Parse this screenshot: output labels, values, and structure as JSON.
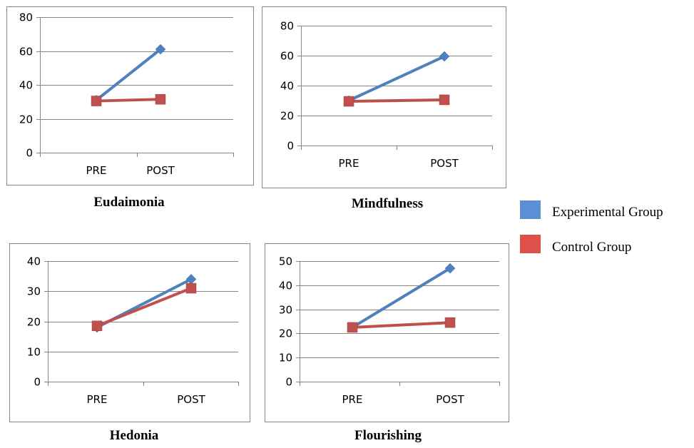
{
  "colors": {
    "experimental": "#4f81bd",
    "control": "#c0504d",
    "grid": "#868686",
    "frame": "#868686"
  },
  "legend": [
    {
      "label": "Experimental Group",
      "color": "#5b8fd6"
    },
    {
      "label": "Control Group",
      "color": "#e0504a"
    }
  ],
  "chart_data": [
    {
      "type": "line",
      "title": "Eudaimonia",
      "categories": [
        "PRE",
        "POST"
      ],
      "ylim": [
        0,
        80
      ],
      "yticks": [
        0,
        20,
        40,
        60,
        80
      ],
      "series": [
        {
          "name": "Experimental Group",
          "marker": "diamond",
          "values": [
            31,
            61
          ]
        },
        {
          "name": "Control Group",
          "marker": "square",
          "values": [
            30.5,
            31.5
          ]
        }
      ]
    },
    {
      "type": "line",
      "title": "Mindfulness",
      "categories": [
        "PRE",
        "POST"
      ],
      "ylim": [
        0,
        80
      ],
      "yticks": [
        0,
        20,
        40,
        60,
        80
      ],
      "series": [
        {
          "name": "Experimental Group",
          "marker": "diamond",
          "values": [
            30,
            59.5
          ]
        },
        {
          "name": "Control Group",
          "marker": "square",
          "values": [
            29.5,
            30.5
          ]
        }
      ]
    },
    {
      "type": "line",
      "title": "Hedonia",
      "categories": [
        "PRE",
        "POST"
      ],
      "ylim": [
        0,
        40
      ],
      "yticks": [
        0,
        10,
        20,
        30,
        40
      ],
      "series": [
        {
          "name": "Experimental Group",
          "marker": "diamond",
          "values": [
            18,
            34
          ]
        },
        {
          "name": "Control Group",
          "marker": "square",
          "values": [
            18.5,
            31
          ]
        }
      ]
    },
    {
      "type": "line",
      "title": "Flourishing",
      "categories": [
        "PRE",
        "POST"
      ],
      "ylim": [
        0,
        50
      ],
      "yticks": [
        0,
        10,
        20,
        30,
        40,
        50
      ],
      "series": [
        {
          "name": "Experimental Group",
          "marker": "diamond",
          "values": [
            22.5,
            47
          ]
        },
        {
          "name": "Control Group",
          "marker": "square",
          "values": [
            22.5,
            24.5
          ]
        }
      ]
    }
  ]
}
